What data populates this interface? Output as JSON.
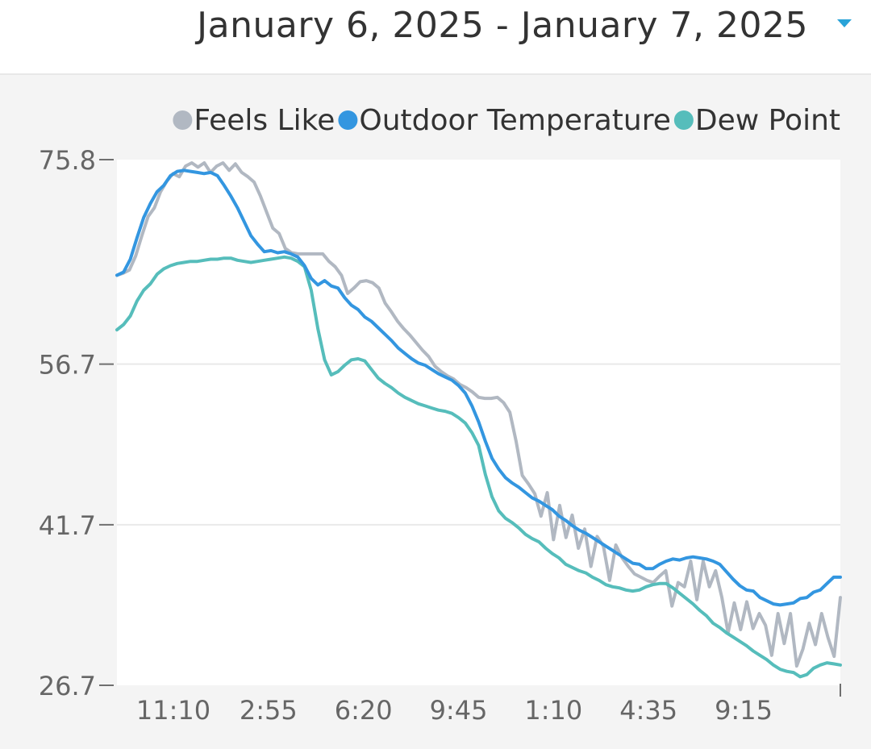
{
  "header": {
    "date_range": "January 6, 2025 - January 7, 2025"
  },
  "colors": {
    "feels_like": "#b1b8c2",
    "outdoor_temperature": "#3396e0",
    "dew_point": "#56bdbb",
    "dropdown": "#29a3d8"
  },
  "chart_data": {
    "type": "line",
    "title": "",
    "xlabel": "",
    "ylabel": "",
    "ylim": [
      26.7,
      75.8
    ],
    "y_ticks": [
      "75.8",
      "56.7",
      "41.7",
      "26.7"
    ],
    "x_ticks": [
      "11:10",
      "2:55",
      "6:20",
      "9:45",
      "1:10",
      "4:35",
      "9:15"
    ],
    "legend_position": "top-right",
    "grid": true,
    "series": [
      {
        "name": "Feels Like",
        "color": "#b1b8c2",
        "values": [
          65,
          65.2,
          65.5,
          66.8,
          68.7,
          70.5,
          71.3,
          72.8,
          73.8,
          74.5,
          74.2,
          75.2,
          75.5,
          75.1,
          75.5,
          74.6,
          75.2,
          75.5,
          74.8,
          75.4,
          74.6,
          74.2,
          73.7,
          72.4,
          70.9,
          69.4,
          68.9,
          67.5,
          67.1,
          67,
          67,
          67,
          67,
          67,
          66.3,
          65.8,
          65,
          63.3,
          63.8,
          64.4,
          64.5,
          64.3,
          63.8,
          62.4,
          61.6,
          60.7,
          60,
          59.4,
          58.7,
          58,
          57.4,
          56.5,
          56,
          55.6,
          55.3,
          54.8,
          54.5,
          54.1,
          53.6,
          53.5,
          53.5,
          53.6,
          53.1,
          52.2,
          49.5,
          46.3,
          45.5,
          44.6,
          42.5,
          44.7,
          40.3,
          43.5,
          40.5,
          42.6,
          39.5,
          41.3,
          37.8,
          40.6,
          39.7,
          36.5,
          39.8,
          38.6,
          37.8,
          37.1,
          36.8,
          36.5,
          36.3,
          36.9,
          37.4,
          34.1,
          36.3,
          35.9,
          38.3,
          34.7,
          38.3,
          35.9,
          37.4,
          34.9,
          31.6,
          34.4,
          31.9,
          34.5,
          32,
          33.4,
          32.3,
          29.5,
          33.4,
          30.6,
          33.4,
          28.5,
          30.1,
          32.5,
          30.5,
          33.4,
          31.2,
          29.4,
          34.9
        ]
      },
      {
        "name": "Outdoor Temperature",
        "color": "#3396e0",
        "values": [
          65.0,
          65.3,
          66.5,
          68.5,
          70.4,
          71.7,
          72.8,
          73.4,
          74.3,
          74.7,
          74.8,
          74.7,
          74.6,
          74.5,
          74.6,
          74.3,
          73.4,
          72.4,
          71.3,
          70.0,
          68.7,
          67.9,
          67.2,
          67.3,
          67.1,
          67.2,
          67.0,
          66.7,
          65.9,
          64.7,
          64.1,
          64.5,
          64.0,
          63.8,
          62.9,
          62.2,
          61.8,
          61.1,
          60.7,
          60.1,
          59.5,
          58.9,
          58.2,
          57.7,
          57.2,
          56.8,
          56.6,
          56.2,
          55.8,
          55.5,
          55.2,
          54.7,
          54.0,
          52.8,
          51.3,
          49.5,
          47.9,
          46.9,
          46.1,
          45.6,
          45.2,
          44.7,
          44.2,
          43.9,
          43.5,
          43.1,
          42.5,
          42.1,
          41.6,
          41.2,
          40.9,
          40.5,
          40.1,
          39.7,
          39.3,
          38.9,
          38.5,
          38.1,
          38.0,
          37.6,
          37.6,
          38.0,
          38.3,
          38.5,
          38.4,
          38.6,
          38.7,
          38.6,
          38.5,
          38.3,
          38.0,
          37.3,
          36.6,
          36.0,
          35.6,
          35.5,
          34.9,
          34.6,
          34.3,
          34.2,
          34.3,
          34.4,
          34.8,
          34.9,
          35.4,
          35.6,
          36.2,
          36.8,
          36.8
        ]
      },
      {
        "name": "Dew Point",
        "color": "#56bdbb",
        "values": [
          59.9,
          60.4,
          61.2,
          62.6,
          63.6,
          64.2,
          65.1,
          65.6,
          65.9,
          66.1,
          66.2,
          66.3,
          66.3,
          66.4,
          66.5,
          66.5,
          66.6,
          66.6,
          66.4,
          66.3,
          66.2,
          66.3,
          66.4,
          66.5,
          66.6,
          66.7,
          66.6,
          66.3,
          65.8,
          63.6,
          60.0,
          57.1,
          55.7,
          56.0,
          56.6,
          57.1,
          57.2,
          57.0,
          56.2,
          55.4,
          54.9,
          54.5,
          54.0,
          53.6,
          53.3,
          53.0,
          52.8,
          52.6,
          52.4,
          52.3,
          52.1,
          51.7,
          51.2,
          50.3,
          49.1,
          46.4,
          44.3,
          43.0,
          42.3,
          41.9,
          41.4,
          40.8,
          40.4,
          40.1,
          39.5,
          39.0,
          38.6,
          38.0,
          37.7,
          37.4,
          37.2,
          36.8,
          36.5,
          36.1,
          35.9,
          35.8,
          35.6,
          35.5,
          35.6,
          35.9,
          36.1,
          36.2,
          36.2,
          35.8,
          35.3,
          34.8,
          34.3,
          33.7,
          33.2,
          32.5,
          32.1,
          31.6,
          31.2,
          30.8,
          30.4,
          29.9,
          29.5,
          29.1,
          28.6,
          28.2,
          28.0,
          27.9,
          27.5,
          27.7,
          28.3,
          28.6,
          28.8,
          28.7,
          28.6
        ]
      }
    ]
  }
}
